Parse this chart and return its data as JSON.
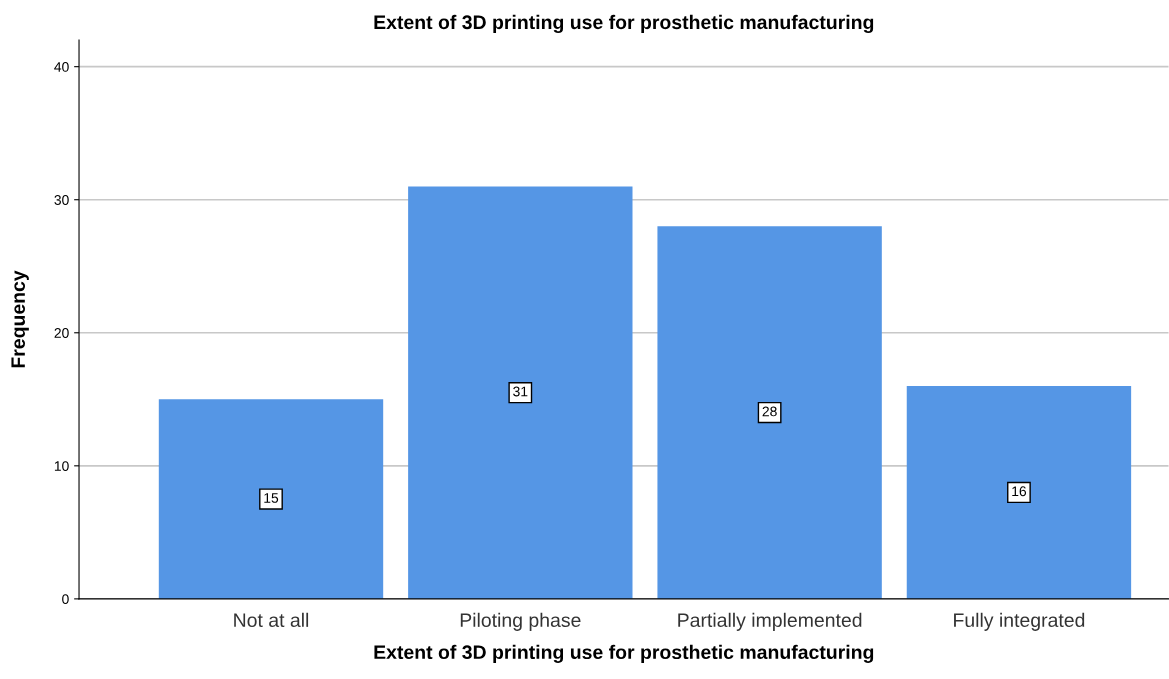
{
  "chart_data": {
    "type": "bar",
    "title": "Extent of 3D printing use for prosthetic manufacturing",
    "xlabel": "Extent of 3D printing use for prosthetic manufacturing",
    "ylabel": "Frequency",
    "categories": [
      "Not at all",
      "Piloting phase",
      "Partially implemented",
      "Fully integrated"
    ],
    "values": [
      15,
      31,
      28,
      16
    ],
    "color": "#5596e5",
    "ylim": [
      0,
      42
    ],
    "yticks": [
      0,
      10,
      20,
      30,
      40
    ],
    "grid": "y",
    "data_labels": true
  }
}
